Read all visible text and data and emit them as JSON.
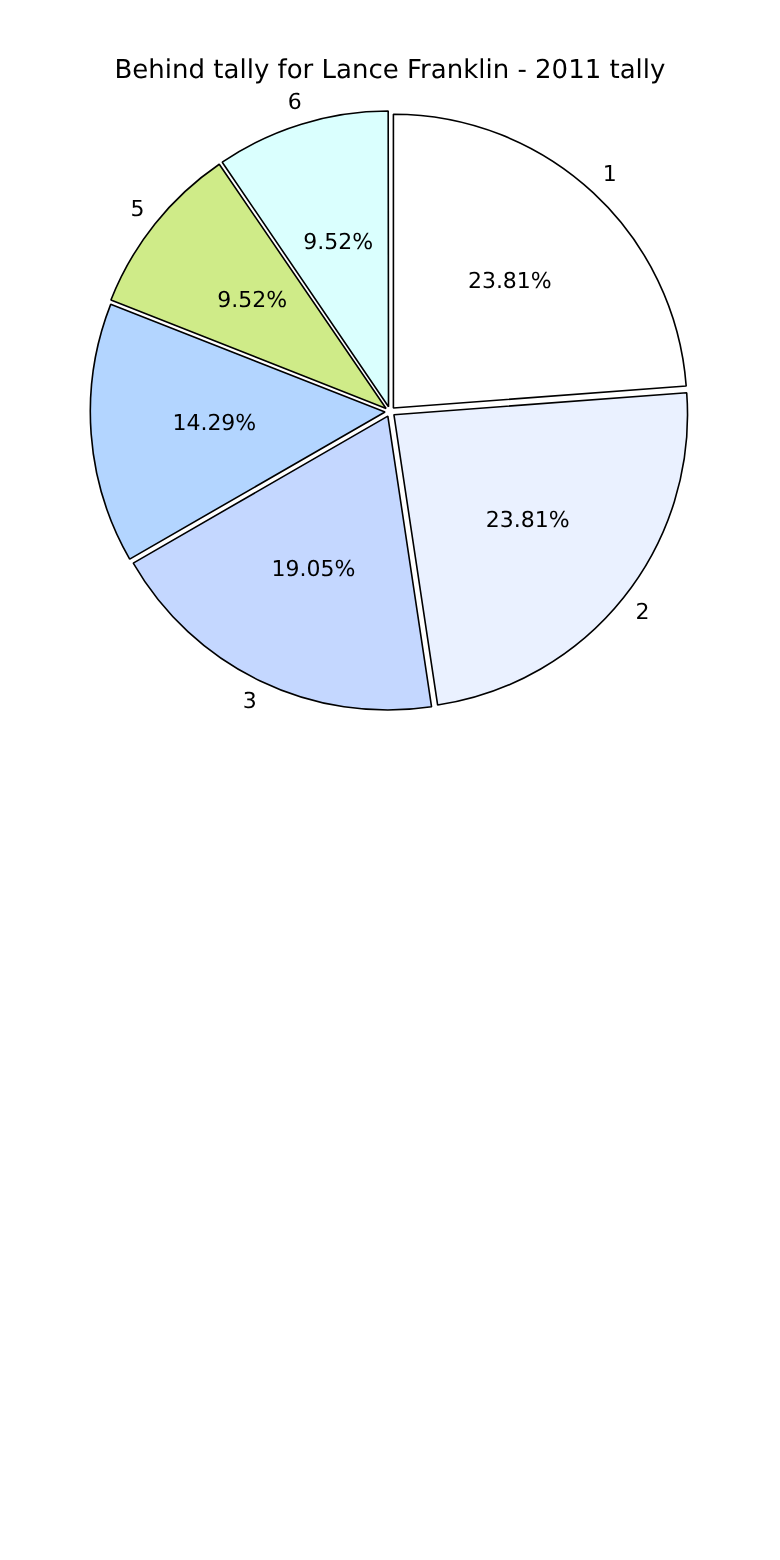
{
  "chart_data": {
    "type": "pie",
    "title": "Behind tally for Lance Franklin - 2011 tally",
    "categories": [
      "1",
      "2",
      "3",
      null,
      "5",
      "6"
    ],
    "values": [
      23.81,
      23.81,
      19.05,
      14.29,
      9.52,
      9.52
    ],
    "value_labels": [
      "23.81%",
      "23.81%",
      "19.05%",
      "14.29%",
      "9.52%",
      "9.52%"
    ],
    "colors": [
      "#ffffff",
      "#eaf1ff",
      "#c4d7ff",
      "#b3d5ff",
      "#cfeb88",
      "#dafffe"
    ],
    "legend": false
  }
}
